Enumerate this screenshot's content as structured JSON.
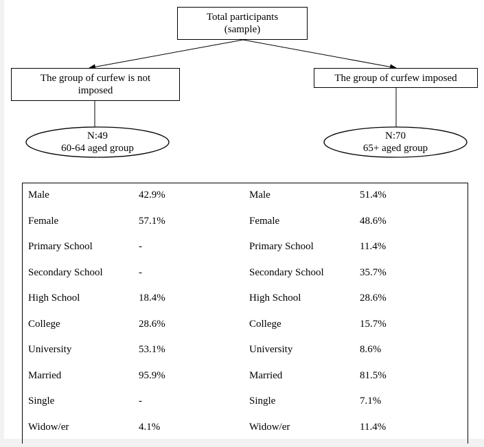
{
  "root": {
    "line1": "Total participants",
    "line2": "(sample)"
  },
  "left_group": {
    "title_line1": "The group of curfew is not",
    "title_line2": "imposed",
    "n": "N:49",
    "age": "60-64 aged group"
  },
  "right_group": {
    "title": "The group of curfew imposed",
    "n": "N:70",
    "age": "65+ aged group"
  },
  "table": {
    "rows": [
      {
        "left_label": "Male",
        "left_value": "42.9%",
        "right_label": "Male",
        "right_value": "51.4%"
      },
      {
        "left_label": "Female",
        "left_value": "57.1%",
        "right_label": "Female",
        "right_value": "48.6%"
      },
      {
        "left_label": "Primary School",
        "left_value": "-",
        "right_label": "Primary School",
        "right_value": "11.4%"
      },
      {
        "left_label": "Secondary School",
        "left_value": "-",
        "right_label": "Secondary School",
        "right_value": "35.7%"
      },
      {
        "left_label": "High School",
        "left_value": "18.4%",
        "right_label": "High School",
        "right_value": "28.6%"
      },
      {
        "left_label": "College",
        "left_value": "28.6%",
        "right_label": "College",
        "right_value": "15.7%"
      },
      {
        "left_label": "University",
        "left_value": "53.1%",
        "right_label": "University",
        "right_value": "8.6%"
      },
      {
        "left_label": "Married",
        "left_value": "95.9%",
        "right_label": "Married",
        "right_value": "81.5%"
      },
      {
        "left_label": "Single",
        "left_value": "-",
        "right_label": "Single",
        "right_value": "7.1%"
      },
      {
        "left_label": "Widow/er",
        "left_value": "4.1%",
        "right_label": "Widow/er",
        "right_value": "11.4%"
      }
    ]
  }
}
